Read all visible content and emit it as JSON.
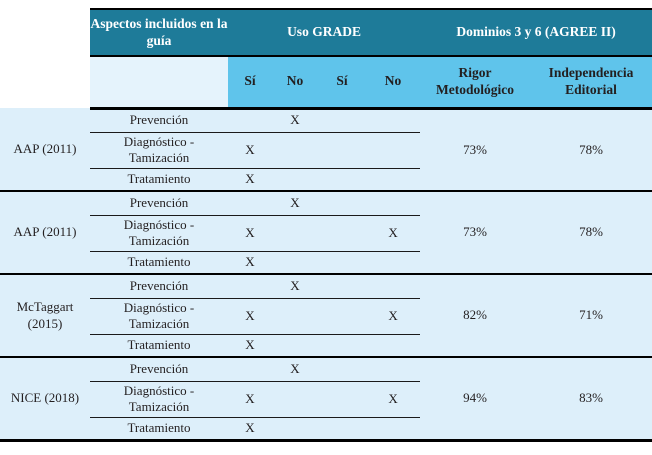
{
  "table": {
    "header": {
      "aspectos": "Aspectos incluidos en la guía",
      "uso_grade": "Uso GRADE",
      "dominios": "Dominios 3 y 6 (AGREE II)",
      "sub": [
        "Sí",
        "No",
        "Sí",
        "No"
      ],
      "rigor": "Rigor Metodológico",
      "independencia": "Independencia Editorial"
    },
    "groups": [
      {
        "guide": "AAP (2011)",
        "rigor": "73%",
        "editorial": "78%",
        "rows": [
          {
            "aspect": "Prevención",
            "marks": [
              "",
              "X",
              "",
              ""
            ]
          },
          {
            "aspect": "Diagnóstico - Tamización",
            "marks": [
              "X",
              "",
              "",
              ""
            ]
          },
          {
            "aspect": "Tratamiento",
            "marks": [
              "X",
              "",
              "",
              ""
            ]
          }
        ]
      },
      {
        "guide": "AAP (2011)",
        "rigor": "73%",
        "editorial": "78%",
        "rows": [
          {
            "aspect": "Prevención",
            "marks": [
              "",
              "X",
              "",
              ""
            ]
          },
          {
            "aspect": "Diagnóstico - Tamización",
            "marks": [
              "X",
              "",
              "",
              "X"
            ]
          },
          {
            "aspect": "Tratamiento",
            "marks": [
              "X",
              "",
              "",
              ""
            ]
          }
        ]
      },
      {
        "guide": "McTaggart (2015)",
        "rigor": "82%",
        "editorial": "71%",
        "rows": [
          {
            "aspect": "Prevención",
            "marks": [
              "",
              "X",
              "",
              ""
            ]
          },
          {
            "aspect": "Diagnóstico - Tamización",
            "marks": [
              "X",
              "",
              "",
              "X"
            ]
          },
          {
            "aspect": "Tratamiento",
            "marks": [
              "X",
              "",
              "",
              ""
            ]
          }
        ]
      },
      {
        "guide": "NICE (2018)",
        "rigor": "94%",
        "editorial": "83%",
        "rows": [
          {
            "aspect": "Prevención",
            "marks": [
              "",
              "X",
              "",
              ""
            ]
          },
          {
            "aspect": "Diagnóstico - Tamización",
            "marks": [
              "X",
              "",
              "",
              "X"
            ]
          },
          {
            "aspect": "Tratamiento",
            "marks": [
              "X",
              "",
              "",
              ""
            ]
          }
        ]
      }
    ]
  },
  "colors": {
    "header_teal": "#1e7b99",
    "subheader_blue": "#5fc4eb",
    "pale_cell": "#e5f3fc",
    "row_background": "#ddeffa",
    "text_ink": "#231f20",
    "rule_black": "#000000"
  }
}
